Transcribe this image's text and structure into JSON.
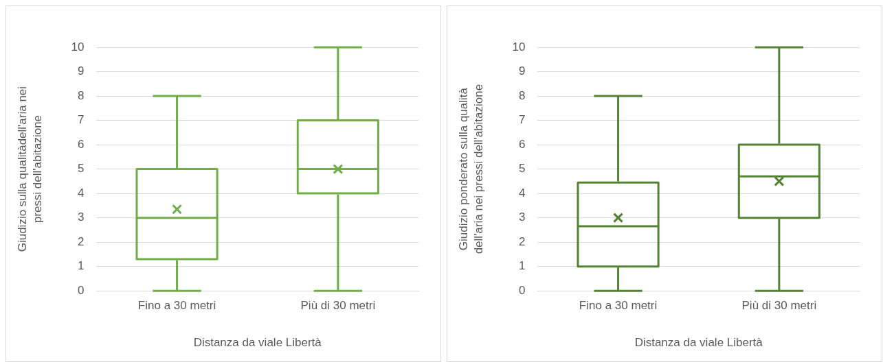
{
  "chart_data": [
    {
      "type": "box",
      "categories": [
        "Fino a 30 metri",
        "Più di 30 metri"
      ],
      "xlabel": "Distanza da viale Libertà",
      "ylabel": "Giudizio sulla qualitàdell'aria nei pressi dell'abitazione",
      "ylim": [
        0,
        10
      ],
      "yticks": [
        0,
        1,
        2,
        3,
        4,
        5,
        6,
        7,
        8,
        9,
        10
      ],
      "grid": "y",
      "marker": "cross",
      "series": [
        {
          "color": "#70ad47",
          "boxes": [
            {
              "low": 0,
              "q1": 1.3,
              "median": 3,
              "q3": 5,
              "high": 8,
              "mean": 3.35
            },
            {
              "low": 0,
              "q1": 4,
              "median": 5,
              "q3": 7,
              "high": 10,
              "mean": 5
            }
          ]
        }
      ]
    },
    {
      "type": "box",
      "categories": [
        "Fino a 30 metri",
        "Più di 30 metri"
      ],
      "xlabel": "Distanza da viale Libertà",
      "ylabel": "Giudizio ponderato sulla qualità dell'aria nei pressi dell'abitazione",
      "ylim": [
        0,
        10
      ],
      "yticks": [
        0,
        1,
        2,
        3,
        4,
        5,
        6,
        7,
        8,
        9,
        10
      ],
      "grid": "y",
      "marker": "cross",
      "series": [
        {
          "color": "#548235",
          "boxes": [
            {
              "low": 0,
              "q1": 1,
              "median": 2.65,
              "q3": 4.45,
              "high": 8,
              "mean": 3
            },
            {
              "low": 0,
              "q1": 3,
              "median": 4.7,
              "q3": 6,
              "high": 10,
              "mean": 4.5
            }
          ]
        }
      ]
    }
  ]
}
